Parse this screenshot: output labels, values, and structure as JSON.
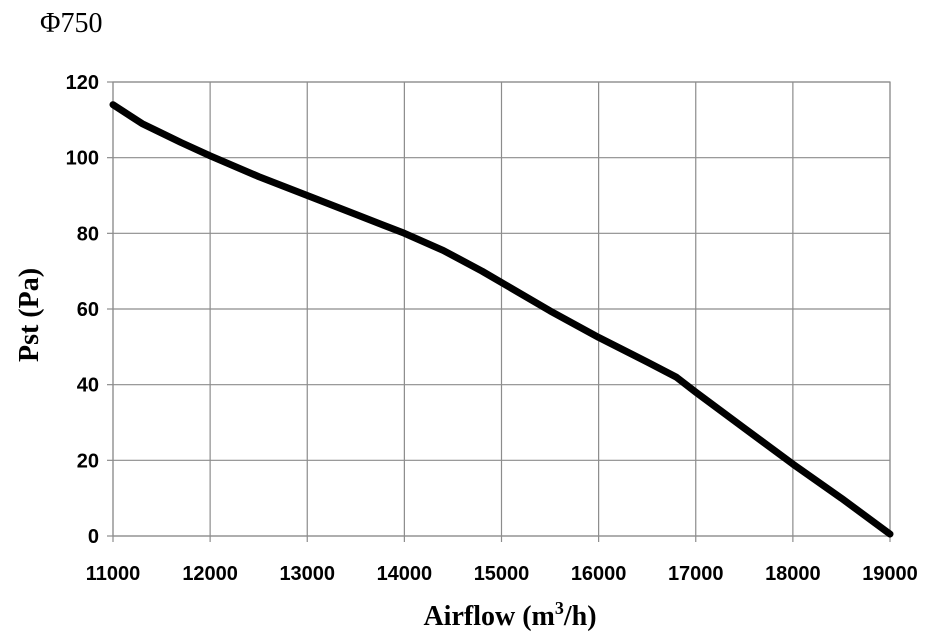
{
  "chart_data": {
    "type": "line",
    "title": "Φ750",
    "xlabel": "Airflow (m³/h)",
    "xlabel_parts": {
      "base": "Airflow (m",
      "sup": "3",
      "tail": "/h)"
    },
    "ylabel": "Pst (Pa)",
    "xlim": [
      11000,
      19000
    ],
    "ylim": [
      0,
      120
    ],
    "x_ticks": [
      11000,
      12000,
      13000,
      14000,
      15000,
      16000,
      17000,
      18000,
      19000
    ],
    "y_ticks": [
      0,
      20,
      40,
      60,
      80,
      100,
      120
    ],
    "grid": true,
    "series": [
      {
        "x": [
          11000,
          11300,
          11700,
          12000,
          12500,
          13000,
          13500,
          14000,
          14400,
          14800,
          15000,
          15500,
          16000,
          16500,
          16800,
          17000,
          17500,
          18000,
          18500,
          19000
        ],
        "y": [
          114,
          109,
          104,
          100.5,
          95,
          90,
          85,
          80,
          75.5,
          70,
          67,
          59.5,
          52.5,
          46,
          42,
          38,
          28.5,
          19,
          10,
          0.5
        ],
        "color": "#000000"
      }
    ]
  }
}
